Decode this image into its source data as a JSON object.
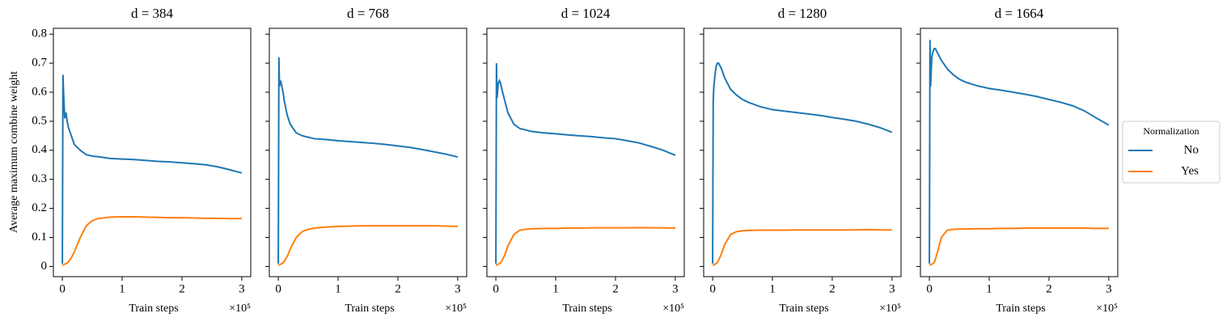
{
  "chart_data": [
    {
      "type": "line",
      "title": "d = 384",
      "ylabel": "Average maximum combine weight",
      "xlabel": "Train steps",
      "x_offset_label": "×10⁵",
      "x": [
        0,
        0.01,
        0.02,
        0.04,
        0.06,
        0.08,
        0.1,
        0.15,
        0.2,
        0.3,
        0.4,
        0.5,
        0.6,
        0.8,
        1.0,
        1.2,
        1.4,
        1.6,
        1.8,
        2.0,
        2.2,
        2.4,
        2.6,
        2.8,
        3.0
      ],
      "series": [
        {
          "name": "No",
          "color": "#1f77b4",
          "values": [
            0.01,
            0.66,
            0.6,
            0.51,
            0.53,
            0.5,
            0.48,
            0.45,
            0.42,
            0.4,
            0.385,
            0.38,
            0.378,
            0.372,
            0.37,
            0.368,
            0.365,
            0.362,
            0.36,
            0.357,
            0.354,
            0.35,
            0.343,
            0.333,
            0.322
          ]
        },
        {
          "name": "Yes",
          "color": "#ff7f0e",
          "values": [
            0.005,
            0.005,
            0.006,
            0.008,
            0.01,
            0.012,
            0.016,
            0.03,
            0.05,
            0.1,
            0.14,
            0.158,
            0.165,
            0.17,
            0.171,
            0.171,
            0.17,
            0.169,
            0.168,
            0.168,
            0.167,
            0.166,
            0.166,
            0.165,
            0.165
          ]
        }
      ],
      "xlim": [
        -0.15,
        3.15
      ],
      "xticks": [
        0,
        1,
        2,
        3
      ],
      "ylim": [
        -0.035,
        0.82
      ],
      "yticks": [
        0.0,
        0.1,
        0.2,
        0.3,
        0.4,
        0.5,
        0.6,
        0.7,
        0.8
      ],
      "ytick_labels": true
    },
    {
      "type": "line",
      "title": "d = 768",
      "xlabel": "Train steps",
      "x_offset_label": "×10⁵",
      "x": [
        0,
        0.01,
        0.02,
        0.04,
        0.06,
        0.08,
        0.1,
        0.15,
        0.2,
        0.3,
        0.4,
        0.5,
        0.6,
        0.8,
        1.0,
        1.2,
        1.4,
        1.6,
        1.8,
        2.0,
        2.2,
        2.4,
        2.6,
        2.8,
        3.0
      ],
      "series": [
        {
          "name": "No",
          "color": "#1f77b4",
          "values": [
            0.01,
            0.72,
            0.62,
            0.64,
            0.62,
            0.6,
            0.57,
            0.52,
            0.49,
            0.46,
            0.45,
            0.445,
            0.44,
            0.437,
            0.433,
            0.43,
            0.427,
            0.424,
            0.42,
            0.415,
            0.41,
            0.403,
            0.395,
            0.387,
            0.377
          ]
        },
        {
          "name": "Yes",
          "color": "#ff7f0e",
          "values": [
            0.005,
            0.005,
            0.006,
            0.008,
            0.01,
            0.013,
            0.018,
            0.035,
            0.06,
            0.1,
            0.12,
            0.128,
            0.132,
            0.136,
            0.138,
            0.139,
            0.14,
            0.14,
            0.14,
            0.14,
            0.14,
            0.14,
            0.14,
            0.139,
            0.138
          ]
        }
      ],
      "xlim": [
        -0.15,
        3.15
      ],
      "xticks": [
        0,
        1,
        2,
        3
      ],
      "ylim": [
        -0.035,
        0.82
      ],
      "yticks": [
        0.0,
        0.1,
        0.2,
        0.3,
        0.4,
        0.5,
        0.6,
        0.7,
        0.8
      ],
      "ytick_labels": false
    },
    {
      "type": "line",
      "title": "d = 1024",
      "xlabel": "Train steps",
      "x_offset_label": "×10⁵",
      "x": [
        0,
        0.01,
        0.02,
        0.04,
        0.06,
        0.08,
        0.1,
        0.15,
        0.2,
        0.3,
        0.4,
        0.5,
        0.6,
        0.8,
        1.0,
        1.2,
        1.4,
        1.6,
        1.8,
        2.0,
        2.2,
        2.4,
        2.6,
        2.8,
        3.0
      ],
      "series": [
        {
          "name": "No",
          "color": "#1f77b4",
          "values": [
            0.01,
            0.7,
            0.58,
            0.63,
            0.64,
            0.63,
            0.61,
            0.57,
            0.53,
            0.49,
            0.475,
            0.47,
            0.465,
            0.46,
            0.457,
            0.453,
            0.45,
            0.447,
            0.443,
            0.44,
            0.433,
            0.425,
            0.413,
            0.4,
            0.383
          ]
        },
        {
          "name": "Yes",
          "color": "#ff7f0e",
          "values": [
            0.005,
            0.005,
            0.006,
            0.008,
            0.01,
            0.013,
            0.02,
            0.04,
            0.07,
            0.11,
            0.125,
            0.128,
            0.13,
            0.131,
            0.131,
            0.132,
            0.132,
            0.133,
            0.133,
            0.133,
            0.133,
            0.134,
            0.133,
            0.133,
            0.132
          ]
        }
      ],
      "xlim": [
        -0.15,
        3.15
      ],
      "xticks": [
        0,
        1,
        2,
        3
      ],
      "ylim": [
        -0.035,
        0.82
      ],
      "yticks": [
        0.0,
        0.1,
        0.2,
        0.3,
        0.4,
        0.5,
        0.6,
        0.7,
        0.8
      ],
      "ytick_labels": false
    },
    {
      "type": "line",
      "title": "d = 1280",
      "xlabel": "Train steps",
      "x_offset_label": "×10⁵",
      "x": [
        0,
        0.01,
        0.02,
        0.04,
        0.06,
        0.08,
        0.1,
        0.15,
        0.2,
        0.3,
        0.4,
        0.5,
        0.6,
        0.8,
        1.0,
        1.2,
        1.4,
        1.6,
        1.8,
        2.0,
        2.2,
        2.4,
        2.6,
        2.8,
        3.0
      ],
      "series": [
        {
          "name": "No",
          "color": "#1f77b4",
          "values": [
            0.01,
            0.57,
            0.62,
            0.66,
            0.69,
            0.7,
            0.7,
            0.68,
            0.65,
            0.61,
            0.59,
            0.575,
            0.565,
            0.55,
            0.54,
            0.535,
            0.53,
            0.525,
            0.52,
            0.513,
            0.507,
            0.5,
            0.49,
            0.478,
            0.462
          ]
        },
        {
          "name": "Yes",
          "color": "#ff7f0e",
          "values": [
            0.005,
            0.005,
            0.006,
            0.008,
            0.01,
            0.014,
            0.022,
            0.045,
            0.075,
            0.11,
            0.12,
            0.123,
            0.124,
            0.125,
            0.125,
            0.125,
            0.126,
            0.126,
            0.126,
            0.126,
            0.126,
            0.126,
            0.127,
            0.126,
            0.126
          ]
        }
      ],
      "xlim": [
        -0.15,
        3.15
      ],
      "xticks": [
        0,
        1,
        2,
        3
      ],
      "ylim": [
        -0.035,
        0.82
      ],
      "yticks": [
        0.0,
        0.1,
        0.2,
        0.3,
        0.4,
        0.5,
        0.6,
        0.7,
        0.8
      ],
      "ytick_labels": false
    },
    {
      "type": "line",
      "title": "d = 1664",
      "xlabel": "Train steps",
      "x_offset_label": "×10⁵",
      "x": [
        0,
        0.01,
        0.02,
        0.04,
        0.06,
        0.08,
        0.1,
        0.15,
        0.2,
        0.3,
        0.4,
        0.5,
        0.6,
        0.8,
        1.0,
        1.2,
        1.4,
        1.6,
        1.8,
        2.0,
        2.2,
        2.4,
        2.6,
        2.8,
        3.0
      ],
      "series": [
        {
          "name": "No",
          "color": "#1f77b4",
          "values": [
            0.01,
            0.78,
            0.62,
            0.72,
            0.74,
            0.75,
            0.75,
            0.73,
            0.71,
            0.68,
            0.66,
            0.645,
            0.635,
            0.622,
            0.613,
            0.607,
            0.6,
            0.593,
            0.585,
            0.575,
            0.565,
            0.553,
            0.535,
            0.51,
            0.487
          ]
        },
        {
          "name": "Yes",
          "color": "#ff7f0e",
          "values": [
            0.005,
            0.005,
            0.006,
            0.008,
            0.01,
            0.014,
            0.025,
            0.06,
            0.1,
            0.125,
            0.128,
            0.129,
            0.129,
            0.13,
            0.13,
            0.131,
            0.131,
            0.132,
            0.132,
            0.132,
            0.132,
            0.132,
            0.132,
            0.131,
            0.131
          ]
        }
      ],
      "xlim": [
        -0.15,
        3.15
      ],
      "xticks": [
        0,
        1,
        2,
        3
      ],
      "ylim": [
        -0.035,
        0.82
      ],
      "yticks": [
        0.0,
        0.1,
        0.2,
        0.3,
        0.4,
        0.5,
        0.6,
        0.7,
        0.8
      ],
      "ytick_labels": false
    }
  ],
  "legend_title": "Normalization"
}
